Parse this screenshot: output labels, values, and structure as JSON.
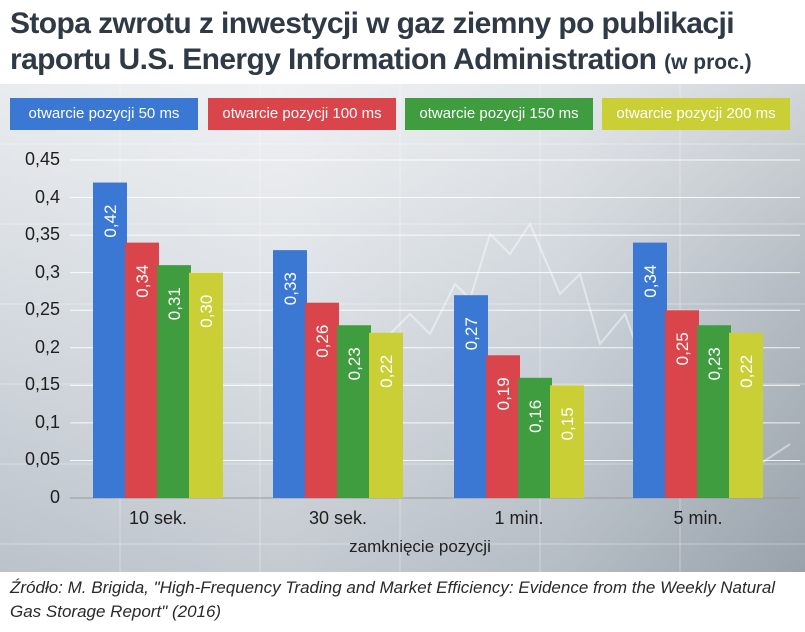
{
  "title": {
    "main": "Stopa zwrotu z inwestycji w gaz ziemny po publikacji raportu U.S. Energy Information Administration",
    "unit": "(w proc.)"
  },
  "source": "Źródło: M. Brigida, \"High-Frequency Trading and Market Efficiency: Evidence from the Weekly Natural Gas Storage Report\" (2016)",
  "chart_data": {
    "type": "bar",
    "title": "Stopa zwrotu z inwestycji w gaz ziemny po publikacji raportu U.S. Energy Information Administration (w proc.)",
    "xlabel": "zamknięcie pozycji",
    "ylabel": "",
    "ylim": [
      0,
      0.45
    ],
    "yticks": [
      "0",
      "0,05",
      "0,1",
      "0,15",
      "0,2",
      "0,25",
      "0,3",
      "0,35",
      "0,4",
      "0,45"
    ],
    "grid": true,
    "legend_position": "top",
    "categories": [
      "10 sek.",
      "30 sek.",
      "1 min.",
      "5 min."
    ],
    "series": [
      {
        "name": "otwarcie pozycji 50 ms",
        "color": "#3a78d4",
        "values": [
          0.42,
          0.33,
          0.27,
          0.34
        ],
        "labels": [
          "0,42",
          "0,33",
          "0,27",
          "0,34"
        ]
      },
      {
        "name": "otwarcie pozycji 100 ms",
        "color": "#d9454a",
        "values": [
          0.34,
          0.26,
          0.19,
          0.25
        ],
        "labels": [
          "0,34",
          "0,26",
          "0,19",
          "0,25"
        ]
      },
      {
        "name": "otwarcie pozycji 150 ms",
        "color": "#3f9c3f",
        "values": [
          0.31,
          0.23,
          0.16,
          0.23
        ],
        "labels": [
          "0,31",
          "0,23",
          "0,16",
          "0,23"
        ]
      },
      {
        "name": "otwarcie pozycji 200 ms",
        "color": "#c9cf35",
        "values": [
          0.3,
          0.22,
          0.15,
          0.22
        ],
        "labels": [
          "0,30",
          "0,22",
          "0,15",
          "0,22"
        ]
      }
    ]
  }
}
